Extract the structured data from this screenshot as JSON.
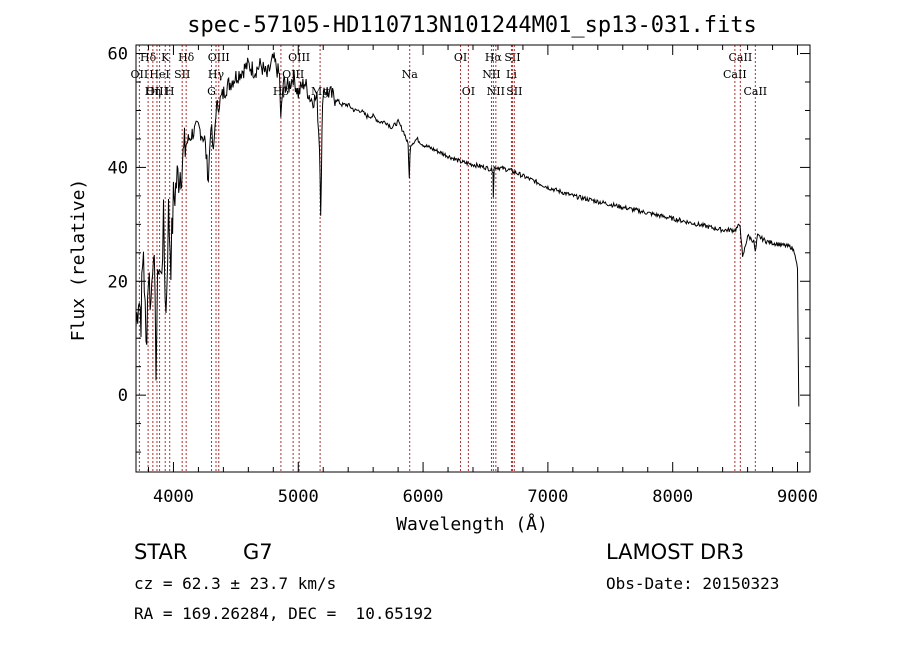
{
  "chart_data": {
    "type": "line",
    "title": "spec-57105-HD110713N101244M01_sp13-031.fits",
    "xlabel": "Wavelength (Å)",
    "ylabel": "Flux (relative)",
    "xlim": [
      3700,
      9100
    ],
    "ylim": [
      -13.5,
      61.5
    ],
    "x_ticks": [
      4000,
      5000,
      6000,
      7000,
      8000,
      9000
    ],
    "x_tick_labels": [
      "4000",
      "5000",
      "6000",
      "7000",
      "8000",
      "9000"
    ],
    "y_ticks": [
      0,
      20,
      40,
      60
    ],
    "y_tick_labels": [
      "0",
      "20",
      "40",
      "60"
    ],
    "series": [
      {
        "name": "flux",
        "x": [
          3700,
          3720,
          3740,
          3760,
          3780,
          3800,
          3820,
          3840,
          3860,
          3880,
          3900,
          3920,
          3940,
          3960,
          3980,
          4000,
          4030,
          4060,
          4100,
          4150,
          4200,
          4250,
          4280,
          4300,
          4320,
          4340,
          4380,
          4420,
          4460,
          4500,
          4550,
          4600,
          4650,
          4700,
          4750,
          4800,
          4850,
          4860,
          4880,
          4920,
          4960,
          5000,
          5050,
          5100,
          5150,
          5170,
          5180,
          5190,
          5200,
          5250,
          5300,
          5350,
          5400,
          5450,
          5500,
          5550,
          5600,
          5650,
          5700,
          5750,
          5800,
          5850,
          5880,
          5890,
          5895,
          5900,
          5950,
          6000,
          6100,
          6200,
          6300,
          6400,
          6500,
          6560,
          6563,
          6570,
          6600,
          6700,
          6800,
          6900,
          7000,
          7200,
          7400,
          7600,
          7800,
          8000,
          8200,
          8400,
          8500,
          8540,
          8560,
          8600,
          8650,
          8662,
          8680,
          8750,
          8850,
          8950,
          8980,
          9000,
          9010
        ],
        "y": [
          12,
          18,
          14,
          26,
          8,
          22,
          16,
          28,
          6,
          24,
          20,
          30,
          14,
          32,
          24,
          34,
          38,
          40,
          44,
          46,
          47,
          45,
          38,
          48,
          42,
          50,
          52,
          54,
          55,
          56,
          57,
          58,
          57,
          58,
          56,
          59,
          56,
          48,
          55,
          54,
          56,
          53,
          55,
          52,
          52,
          44,
          33,
          46,
          54,
          53,
          52,
          51,
          51,
          50,
          50,
          49,
          49,
          48,
          48,
          47,
          48,
          46,
          44,
          38,
          42,
          44,
          45,
          44,
          43,
          42,
          41,
          40.5,
          40,
          39.5,
          35,
          40,
          40,
          39.5,
          38.5,
          37.5,
          36.5,
          35,
          34,
          33,
          32,
          31,
          30,
          29,
          29,
          30,
          24,
          28,
          27,
          25,
          28,
          27,
          26.5,
          26,
          25,
          22,
          -2
        ]
      }
    ],
    "lines": [
      {
        "label": "Hδ",
        "wavelength": 3797,
        "row": 1
      },
      {
        "label": "OII",
        "wavelength": 3727,
        "row": 2
      },
      {
        "label": "OIII",
        "wavelength": 3868,
        "row": 3
      },
      {
        "label": "K",
        "wavelength": 3934,
        "row": 1
      },
      {
        "label": "HeI",
        "wavelength": 3889,
        "row": 2
      },
      {
        "label": "Hη",
        "wavelength": 3835,
        "row": 3
      },
      {
        "label": "Hδ",
        "wavelength": 4102,
        "row": 1
      },
      {
        "label": "SII",
        "wavelength": 4070,
        "row": 2
      },
      {
        "label": "H",
        "wavelength": 3970,
        "row": 3
      },
      {
        "label": "OIII",
        "wavelength": 4363,
        "row": 1
      },
      {
        "label": "Hγ",
        "wavelength": 4341,
        "row": 2
      },
      {
        "label": "G",
        "wavelength": 4305,
        "row": 3
      },
      {
        "label": "OIII",
        "wavelength": 5007,
        "row": 1
      },
      {
        "label": "OIII",
        "wavelength": 4959,
        "row": 2
      },
      {
        "label": "Hβ",
        "wavelength": 4861,
        "row": 3
      },
      {
        "label": "Mg",
        "wavelength": 5175,
        "row": 3
      },
      {
        "label": "Na",
        "wavelength": 5893,
        "row": 2
      },
      {
        "label": "OI",
        "wavelength": 6300,
        "row": 1
      },
      {
        "label": "OI",
        "wavelength": 6363,
        "row": 3
      },
      {
        "label": "Hα",
        "wavelength": 6563,
        "row": 1
      },
      {
        "label": "NII",
        "wavelength": 6548,
        "row": 2
      },
      {
        "label": "NII",
        "wavelength": 6583,
        "row": 3
      },
      {
        "label": "SII",
        "wavelength": 6716,
        "row": 1
      },
      {
        "label": "Li",
        "wavelength": 6708,
        "row": 2
      },
      {
        "label": "SII",
        "wavelength": 6731,
        "row": 3
      },
      {
        "label": "CaII",
        "wavelength": 8542,
        "row": 1
      },
      {
        "label": "CaII",
        "wavelength": 8498,
        "row": 2
      },
      {
        "label": "CaII",
        "wavelength": 8662,
        "row": 3
      }
    ]
  },
  "info": {
    "class_label": "STAR",
    "subclass": "G7",
    "survey": "LAMOST DR3",
    "redshift_text": "cz = 62.3 ± 23.7 km/s",
    "obs_date": "Obs-Date: 20150323",
    "coords": "RA = 169.26284, DEC =  10.65192"
  },
  "colors": {
    "axis": "#000000",
    "line_marker": "#b03030",
    "spectrum": "#000000"
  }
}
